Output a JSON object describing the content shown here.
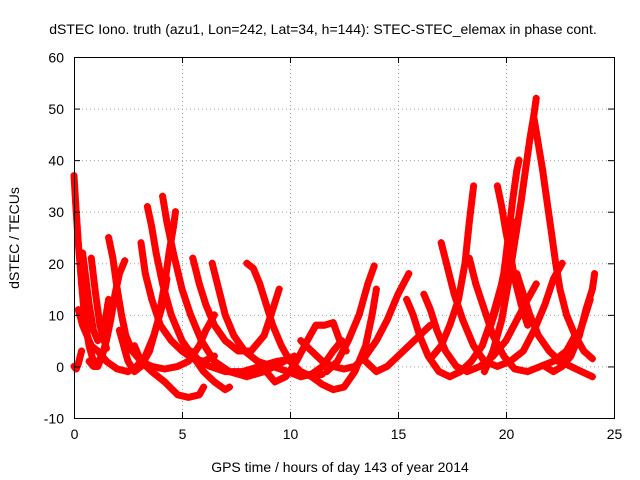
{
  "chart_data": {
    "type": "scatter",
    "title": "dSTEC Iono. truth (azu1, Lon=242, Lat=34, h=144): STEC-STEC_elemax in phase cont.",
    "xlabel": "GPS time / hours of day 143 of year 2014",
    "ylabel": "dSTEC  / TECUs",
    "xlim": [
      0,
      25
    ],
    "ylim": [
      -10,
      60
    ],
    "x_ticks": [
      "0",
      "5",
      "10",
      "15",
      "20",
      "25"
    ],
    "y_ticks": [
      "-10",
      "0",
      "10",
      "20",
      "30",
      "40",
      "50",
      "60"
    ],
    "grid": true,
    "marker": "plus",
    "series_color": "#ff0000",
    "arcs": [
      {
        "values": [
          [
            0.0,
            37
          ],
          [
            0.1,
            30
          ],
          [
            0.2,
            24
          ],
          [
            0.35,
            16
          ],
          [
            0.5,
            9
          ],
          [
            0.7,
            4
          ],
          [
            0.9,
            1
          ],
          [
            1.1,
            0.5
          ],
          [
            1.2,
            1.5
          ]
        ]
      },
      {
        "values": [
          [
            0.0,
            0
          ],
          [
            0.1,
            -0.5
          ],
          [
            0.2,
            0.5
          ],
          [
            0.35,
            3
          ]
        ]
      },
      {
        "values": [
          [
            0.2,
            11
          ],
          [
            0.4,
            8
          ],
          [
            0.6,
            6
          ],
          [
            0.8,
            4
          ],
          [
            1.1,
            3
          ],
          [
            1.5,
            1
          ],
          [
            2.0,
            -0.5
          ],
          [
            2.5,
            -1
          ],
          [
            2.9,
            0
          ],
          [
            3.3,
            2
          ],
          [
            3.7,
            6
          ],
          [
            4.1,
            12
          ],
          [
            4.3,
            17
          ]
        ]
      },
      {
        "values": [
          [
            0.4,
            22
          ],
          [
            0.55,
            17
          ],
          [
            0.7,
            12
          ],
          [
            0.9,
            7
          ],
          [
            1.1,
            5
          ],
          [
            1.3,
            6
          ],
          [
            1.45,
            9
          ],
          [
            1.6,
            13
          ]
        ]
      },
      {
        "values": [
          [
            0.7,
            1
          ],
          [
            0.9,
            0
          ],
          [
            1.1,
            0
          ],
          [
            1.3,
            2
          ],
          [
            1.5,
            5
          ],
          [
            1.7,
            9
          ],
          [
            1.9,
            14
          ],
          [
            2.1,
            18
          ],
          [
            2.35,
            20.5
          ]
        ]
      },
      {
        "values": [
          [
            0.8,
            21
          ],
          [
            1.0,
            14
          ],
          [
            1.2,
            8
          ],
          [
            1.4,
            5
          ],
          [
            1.5,
            3.5
          ]
        ]
      },
      {
        "values": [
          [
            1.6,
            25
          ],
          [
            1.8,
            21
          ],
          [
            2.0,
            15
          ],
          [
            2.2,
            10
          ],
          [
            2.4,
            6
          ],
          [
            2.7,
            3
          ],
          [
            3.1,
            1
          ],
          [
            3.6,
            0
          ],
          [
            4.2,
            -0.5
          ],
          [
            4.8,
            0
          ],
          [
            5.3,
            1
          ],
          [
            5.8,
            4
          ],
          [
            6.1,
            7
          ],
          [
            6.5,
            10
          ]
        ]
      },
      {
        "values": [
          [
            2.1,
            7
          ],
          [
            2.3,
            4
          ],
          [
            2.5,
            1
          ],
          [
            2.8,
            -1
          ],
          [
            3.1,
            0
          ],
          [
            3.5,
            3
          ],
          [
            3.9,
            9
          ],
          [
            4.2,
            16
          ],
          [
            4.4,
            22
          ],
          [
            4.6,
            27
          ],
          [
            4.7,
            30
          ]
        ]
      },
      {
        "values": [
          [
            3.1,
            24
          ],
          [
            3.3,
            18
          ],
          [
            3.6,
            13
          ],
          [
            4.0,
            8
          ],
          [
            4.5,
            5
          ],
          [
            5.0,
            3
          ],
          [
            5.5,
            1.5
          ],
          [
            6.0,
            1
          ],
          [
            6.5,
            2
          ]
        ]
      },
      {
        "values": [
          [
            3.4,
            31
          ],
          [
            3.6,
            27
          ],
          [
            3.8,
            22
          ],
          [
            4.1,
            16
          ],
          [
            4.5,
            10
          ],
          [
            5.0,
            5
          ],
          [
            5.5,
            2
          ],
          [
            6.0,
            -1
          ],
          [
            6.5,
            -3
          ],
          [
            7.0,
            -4.5
          ],
          [
            7.2,
            -4
          ]
        ]
      },
      {
        "values": [
          [
            2.8,
            4
          ],
          [
            3.1,
            1
          ],
          [
            3.6,
            -1
          ],
          [
            4.2,
            -3
          ],
          [
            4.8,
            -5.5
          ],
          [
            5.3,
            -6
          ],
          [
            5.8,
            -5.5
          ],
          [
            6.0,
            -4
          ]
        ]
      },
      {
        "values": [
          [
            4.1,
            33
          ],
          [
            4.3,
            28
          ],
          [
            4.6,
            22
          ],
          [
            5.0,
            15
          ],
          [
            5.4,
            10
          ],
          [
            5.9,
            5
          ],
          [
            6.5,
            1
          ],
          [
            7.2,
            -1
          ],
          [
            8.0,
            -2
          ],
          [
            8.8,
            -1
          ],
          [
            9.5,
            0.5
          ],
          [
            10.2,
            2
          ]
        ]
      },
      {
        "values": [
          [
            5.5,
            21
          ],
          [
            5.8,
            16
          ],
          [
            6.1,
            12
          ],
          [
            6.5,
            8
          ],
          [
            7.0,
            5
          ],
          [
            7.6,
            3
          ],
          [
            8.2,
            3
          ],
          [
            8.8,
            6
          ],
          [
            9.2,
            11
          ],
          [
            9.5,
            15
          ]
        ]
      },
      {
        "values": [
          [
            5.4,
            3
          ],
          [
            5.8,
            1
          ],
          [
            6.3,
            0
          ],
          [
            7.0,
            -1
          ],
          [
            7.8,
            -1
          ],
          [
            8.6,
            0
          ],
          [
            9.4,
            1
          ],
          [
            10.2,
            1.5
          ]
        ]
      },
      {
        "values": [
          [
            6.4,
            20
          ],
          [
            6.7,
            15
          ],
          [
            7.0,
            10
          ],
          [
            7.4,
            6
          ],
          [
            7.9,
            3
          ],
          [
            8.5,
            1
          ],
          [
            9.2,
            0
          ],
          [
            9.9,
            -1
          ],
          [
            10.5,
            -2
          ],
          [
            11.0,
            -1.5
          ],
          [
            11.5,
            0
          ],
          [
            12.0,
            3
          ],
          [
            12.4,
            5
          ]
        ]
      },
      {
        "values": [
          [
            8.0,
            20
          ],
          [
            8.3,
            19
          ],
          [
            8.6,
            16
          ],
          [
            8.9,
            12
          ],
          [
            9.2,
            8
          ],
          [
            9.6,
            4
          ],
          [
            10.0,
            1
          ],
          [
            10.5,
            -1
          ],
          [
            11.0,
            -2
          ],
          [
            11.5,
            -1.5
          ]
        ]
      },
      {
        "values": [
          [
            8.9,
            -1
          ],
          [
            9.3,
            -3
          ],
          [
            9.8,
            -2
          ],
          [
            10.3,
            1
          ],
          [
            10.8,
            5
          ],
          [
            11.2,
            8
          ],
          [
            11.6,
            8
          ],
          [
            12.0,
            8.5
          ],
          [
            12.3,
            5
          ],
          [
            12.6,
            3
          ]
        ]
      },
      {
        "values": [
          [
            10.5,
            5
          ],
          [
            11.0,
            3
          ],
          [
            11.5,
            1
          ],
          [
            12.0,
            0
          ],
          [
            12.5,
            -0.5
          ],
          [
            13.0,
            0
          ],
          [
            13.5,
            2
          ],
          [
            14.0,
            5
          ],
          [
            14.5,
            9
          ],
          [
            15.0,
            14
          ],
          [
            15.5,
            18
          ]
        ]
      },
      {
        "values": [
          [
            11.0,
            -2
          ],
          [
            11.5,
            -3.5
          ],
          [
            12.0,
            -4.5
          ],
          [
            12.5,
            -4
          ],
          [
            13.0,
            -1
          ],
          [
            13.5,
            4
          ],
          [
            13.8,
            10
          ],
          [
            14.0,
            15
          ]
        ]
      },
      {
        "values": [
          [
            11.7,
            -1
          ],
          [
            12.2,
            1
          ],
          [
            12.7,
            5
          ],
          [
            13.2,
            10
          ],
          [
            13.6,
            16
          ],
          [
            13.9,
            19.5
          ]
        ]
      },
      {
        "values": [
          [
            13.5,
            1
          ],
          [
            14.0,
            -1
          ],
          [
            14.5,
            0
          ],
          [
            15.0,
            2
          ],
          [
            15.5,
            4
          ],
          [
            16.0,
            6
          ],
          [
            16.5,
            8
          ]
        ]
      },
      {
        "values": [
          [
            15.4,
            13
          ],
          [
            15.7,
            10
          ],
          [
            16.0,
            6
          ],
          [
            16.4,
            2
          ],
          [
            16.9,
            -1
          ],
          [
            17.4,
            -2
          ],
          [
            17.9,
            -1
          ],
          [
            18.4,
            1
          ],
          [
            18.9,
            4
          ],
          [
            19.4,
            10
          ],
          [
            19.8,
            16
          ],
          [
            20.1,
            22
          ],
          [
            20.4,
            28
          ]
        ]
      },
      {
        "values": [
          [
            16.2,
            14
          ],
          [
            16.5,
            11
          ],
          [
            16.8,
            7
          ],
          [
            17.2,
            3
          ],
          [
            17.7,
            0
          ],
          [
            18.2,
            -1
          ],
          [
            18.8,
            0
          ],
          [
            19.4,
            2
          ],
          [
            20.0,
            5
          ],
          [
            20.5,
            9
          ],
          [
            21.0,
            13
          ],
          [
            21.4,
            16
          ]
        ]
      },
      {
        "values": [
          [
            16.6,
            2
          ],
          [
            17.0,
            4
          ],
          [
            17.4,
            8
          ],
          [
            17.8,
            13
          ],
          [
            18.1,
            20
          ],
          [
            18.3,
            28
          ],
          [
            18.5,
            35
          ]
        ]
      },
      {
        "values": [
          [
            17.0,
            24
          ],
          [
            17.3,
            19
          ],
          [
            17.6,
            14
          ],
          [
            18.0,
            9
          ],
          [
            18.5,
            4
          ],
          [
            19.0,
            1
          ],
          [
            19.6,
            0
          ],
          [
            20.2,
            1
          ],
          [
            20.8,
            3
          ],
          [
            21.3,
            7
          ],
          [
            21.8,
            12
          ],
          [
            22.2,
            17
          ],
          [
            22.6,
            20
          ]
        ]
      },
      {
        "values": [
          [
            18.3,
            21
          ],
          [
            18.6,
            16
          ],
          [
            19.0,
            11
          ],
          [
            19.4,
            6
          ],
          [
            19.9,
            2
          ],
          [
            20.4,
            -0.5
          ],
          [
            21.0,
            -1
          ],
          [
            21.6,
            0
          ],
          [
            22.2,
            1
          ],
          [
            22.8,
            3
          ],
          [
            23.2,
            6
          ]
        ]
      },
      {
        "values": [
          [
            19.0,
            -1
          ],
          [
            19.4,
            3
          ],
          [
            19.8,
            9
          ],
          [
            20.1,
            16
          ],
          [
            20.4,
            24
          ],
          [
            20.7,
            32
          ],
          [
            20.9,
            38
          ],
          [
            21.1,
            44
          ],
          [
            21.3,
            49
          ],
          [
            21.4,
            52
          ]
        ]
      },
      {
        "values": [
          [
            19.3,
            8
          ],
          [
            19.6,
            12
          ],
          [
            19.9,
            18
          ],
          [
            20.1,
            25
          ],
          [
            20.3,
            32
          ],
          [
            20.5,
            38
          ],
          [
            20.6,
            40
          ]
        ]
      },
      {
        "values": [
          [
            19.6,
            35
          ],
          [
            19.8,
            31
          ],
          [
            20.0,
            26
          ],
          [
            20.2,
            22
          ],
          [
            20.4,
            17
          ],
          [
            20.7,
            12
          ],
          [
            21.0,
            8
          ]
        ]
      },
      {
        "values": [
          [
            20.5,
            18
          ],
          [
            20.8,
            14
          ],
          [
            21.1,
            10
          ],
          [
            21.5,
            6
          ],
          [
            22.0,
            3
          ],
          [
            22.5,
            1
          ],
          [
            23.0,
            0
          ],
          [
            23.5,
            -1
          ],
          [
            24.0,
            -2
          ]
        ]
      },
      {
        "values": [
          [
            21.3,
            48
          ],
          [
            21.5,
            43
          ],
          [
            21.7,
            38
          ],
          [
            21.9,
            32
          ],
          [
            22.1,
            26
          ],
          [
            22.3,
            20
          ],
          [
            22.5,
            15
          ],
          [
            22.8,
            10
          ],
          [
            23.2,
            6
          ],
          [
            23.6,
            3
          ],
          [
            24.0,
            1.5
          ]
        ]
      },
      {
        "values": [
          [
            21.8,
            0
          ],
          [
            22.2,
            -1
          ],
          [
            22.6,
            0
          ],
          [
            23.0,
            2
          ],
          [
            23.4,
            6
          ],
          [
            23.7,
            11
          ],
          [
            24.0,
            15
          ],
          [
            24.1,
            18
          ]
        ]
      },
      {
        "values": [
          [
            22.4,
            1
          ],
          [
            22.8,
            2
          ],
          [
            23.2,
            4
          ],
          [
            23.6,
            9
          ],
          [
            23.9,
            13
          ]
        ]
      }
    ]
  }
}
